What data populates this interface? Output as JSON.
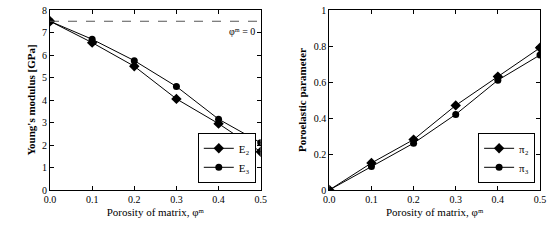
{
  "chart_data": [
    {
      "type": "line",
      "x_label": "Porosity of matrix, φᵐ",
      "y_label": "Young's modulus [GPa]",
      "x": [
        0.0,
        0.1,
        0.2,
        0.3,
        0.4,
        0.5
      ],
      "xlim": [
        0.0,
        0.5
      ],
      "xticks": [
        {
          "value": 0.0,
          "label": "0.0"
        },
        {
          "value": 0.1,
          "label": "0.1"
        },
        {
          "value": 0.2,
          "label": "0.2"
        },
        {
          "value": 0.3,
          "label": "0.3"
        },
        {
          "value": 0.4,
          "label": "0.4"
        },
        {
          "value": 0.5,
          "label": "0.5"
        }
      ],
      "ylim": [
        0,
        8
      ],
      "yticks": [
        0,
        1,
        2,
        3,
        4,
        5,
        6,
        7,
        8
      ],
      "legend": "lower right",
      "reference_lines": [
        {
          "y": 7.5,
          "label": "φᵐ = 0",
          "line_style": "dashed",
          "color": "#555555"
        }
      ],
      "series": [
        {
          "name": "E₂",
          "color": "#000000",
          "marker": "diamond",
          "line_style": "solid",
          "values": [
            7.5,
            6.55,
            5.5,
            4.05,
            2.95,
            1.7
          ]
        },
        {
          "name": "E₃",
          "color": "#000000",
          "marker": "circle",
          "line_style": "solid",
          "values": [
            7.5,
            6.7,
            5.75,
            4.6,
            3.15,
            2.1
          ]
        }
      ]
    },
    {
      "type": "line",
      "x_label": "Porosity of matrix, φᵐ",
      "y_label": "Poroelastic parameter",
      "x": [
        0.0,
        0.1,
        0.2,
        0.3,
        0.4,
        0.5
      ],
      "xlim": [
        0.0,
        0.5
      ],
      "xticks": [
        {
          "value": 0.0,
          "label": "0.0"
        },
        {
          "value": 0.1,
          "label": "0.1"
        },
        {
          "value": 0.2,
          "label": "0.2"
        },
        {
          "value": 0.3,
          "label": "0.3"
        },
        {
          "value": 0.4,
          "label": "0.4"
        },
        {
          "value": 0.5,
          "label": "0.5"
        }
      ],
      "ylim": [
        0,
        1
      ],
      "yticks": [
        0,
        0.2,
        0.4,
        0.6,
        0.8,
        1
      ],
      "legend": "lower right",
      "series": [
        {
          "name": "π₂",
          "color": "#000000",
          "marker": "diamond",
          "line_style": "solid",
          "values": [
            0,
            0.15,
            0.28,
            0.47,
            0.63,
            0.79
          ]
        },
        {
          "name": "π₃",
          "color": "#000000",
          "marker": "circle",
          "line_style": "solid",
          "values": [
            0,
            0.13,
            0.26,
            0.42,
            0.61,
            0.75
          ]
        }
      ]
    }
  ]
}
